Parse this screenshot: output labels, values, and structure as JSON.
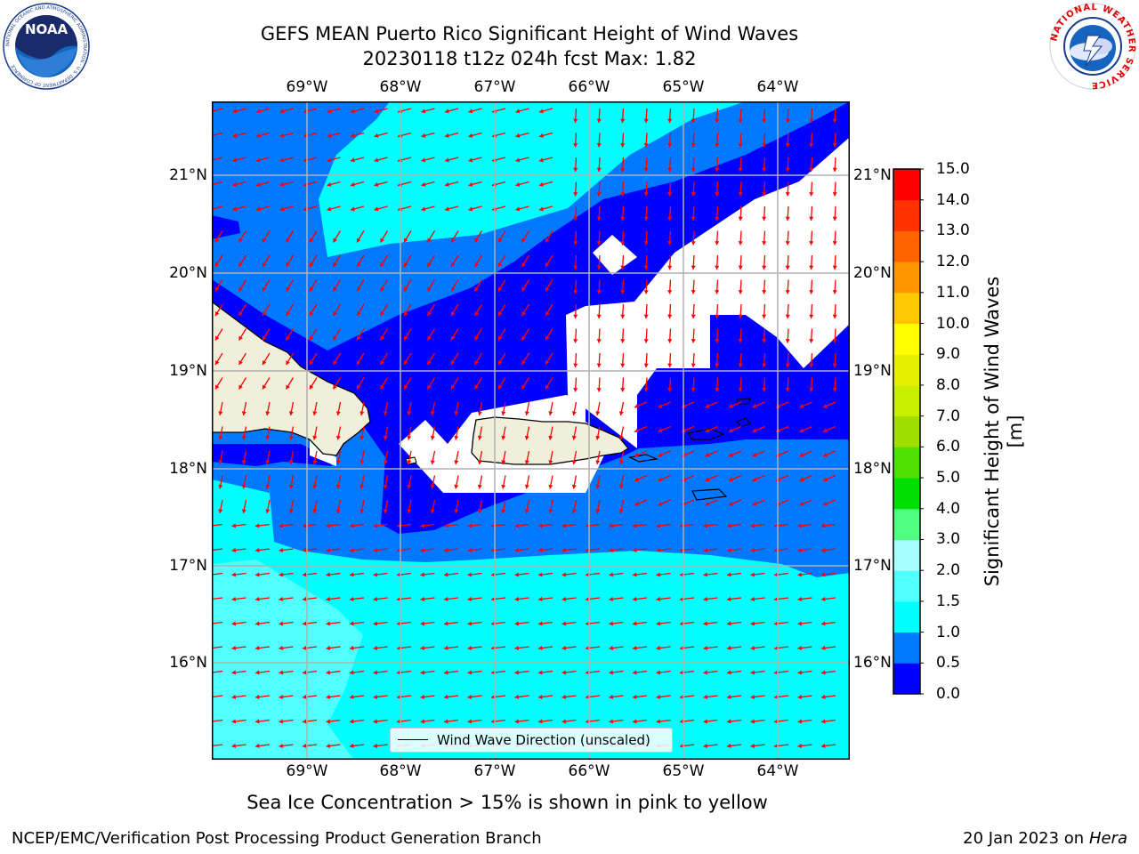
{
  "title_line1": "GEFS MEAN Puerto Rico Significant Height of Wind Waves",
  "title_line2": "20230118 t12z 024h fcst   Max: 1.82",
  "logo_left": "NOAA",
  "logo_left_ring": "NATIONAL OCEANIC AND ATMOSPHERIC ADMINISTRATION · U.S. DEPARTMENT OF COMMERCE",
  "logo_right_ring": "NATIONAL WEATHER SERVICE",
  "lon_ticks": [
    "69°W",
    "68°W",
    "67°W",
    "66°W",
    "65°W",
    "64°W"
  ],
  "lat_ticks": [
    "21°N",
    "20°N",
    "19°N",
    "18°N",
    "17°N",
    "16°N"
  ],
  "colorbar": {
    "label": "Significant Height of Wind Waves [m]",
    "ticks": [
      "0.0",
      "0.5",
      "1.0",
      "1.5",
      "2.0",
      "3.0",
      "4.0",
      "5.0",
      "6.0",
      "7.0",
      "8.0",
      "9.0",
      "10.0",
      "11.0",
      "12.0",
      "13.0",
      "14.0",
      "15.0"
    ],
    "colors": [
      "#0000ff",
      "#0078ff",
      "#00ffff",
      "#50ffff",
      "#aaffff",
      "#50ff80",
      "#00e000",
      "#50e000",
      "#a0e000",
      "#c8f000",
      "#e8f000",
      "#ffff00",
      "#ffc800",
      "#ff9600",
      "#ff6400",
      "#ff3200",
      "#ff0000"
    ]
  },
  "legend_text": "Wind Wave Direction (unscaled)",
  "note": "Sea Ice Concentration > 15% is shown in pink to yellow",
  "footer_left": "NCEP/EMC/Verification Post Processing Product Generation Branch",
  "footer_right_prefix": "20 Jan 2023 on ",
  "footer_right_host": "Hera",
  "colors": {
    "level_0": "#0000ff",
    "level_05": "#0078ff",
    "level_1": "#00ffff",
    "level_15": "#50ffff",
    "land": "#efefdc",
    "arrow": "#ff0000",
    "grid": "#b0b0b0"
  }
}
